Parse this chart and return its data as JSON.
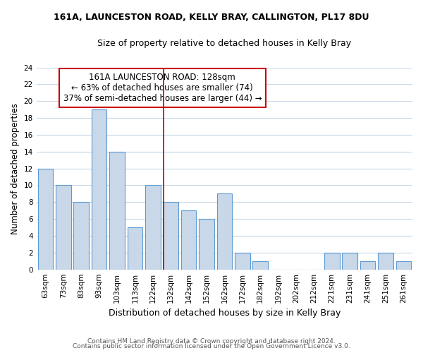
{
  "title": "161A, LAUNCESTON ROAD, KELLY BRAY, CALLINGTON, PL17 8DU",
  "subtitle": "Size of property relative to detached houses in Kelly Bray",
  "xlabel": "Distribution of detached houses by size in Kelly Bray",
  "ylabel": "Number of detached properties",
  "bar_color": "#c8d8e8",
  "bar_edge_color": "#5b9bd5",
  "bins": [
    "63sqm",
    "73sqm",
    "83sqm",
    "93sqm",
    "103sqm",
    "113sqm",
    "122sqm",
    "132sqm",
    "142sqm",
    "152sqm",
    "162sqm",
    "172sqm",
    "182sqm",
    "192sqm",
    "202sqm",
    "212sqm",
    "221sqm",
    "231sqm",
    "241sqm",
    "251sqm",
    "261sqm"
  ],
  "counts": [
    12,
    10,
    8,
    19,
    14,
    5,
    10,
    8,
    7,
    6,
    9,
    2,
    1,
    0,
    0,
    0,
    2,
    2,
    1,
    2,
    1
  ],
  "ylim": [
    0,
    24
  ],
  "yticks": [
    0,
    2,
    4,
    6,
    8,
    10,
    12,
    14,
    16,
    18,
    20,
    22,
    24
  ],
  "property_label": "161A LAUNCESTON ROAD: 128sqm",
  "annotation_line1": "← 63% of detached houses are smaller (74)",
  "annotation_line2": "37% of semi-detached houses are larger (44) →",
  "annotation_box_color": "#ffffff",
  "annotation_box_edge": "#cc0000",
  "vline_color": "#cc0000",
  "footer1": "Contains HM Land Registry data © Crown copyright and database right 2024.",
  "footer2": "Contains public sector information licensed under the Open Government Licence v3.0.",
  "background_color": "#ffffff",
  "grid_color": "#c8d8e8"
}
